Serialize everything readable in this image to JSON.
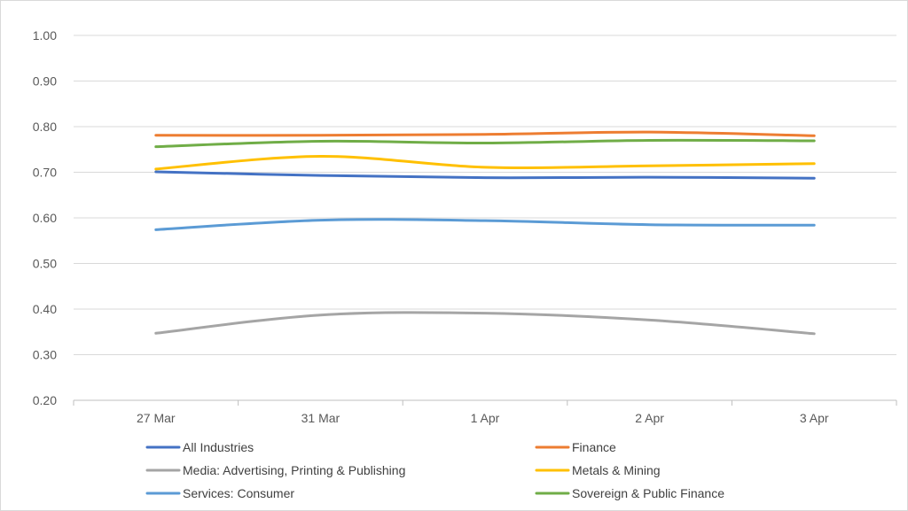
{
  "chart_data": {
    "type": "line",
    "title": "",
    "xlabel": "",
    "ylabel": "",
    "categories": [
      "27 Mar",
      "31 Mar",
      "1 Apr",
      "2 Apr",
      "3 Apr"
    ],
    "ylim": [
      0.2,
      1.0
    ],
    "y_ticks": [
      "0.20",
      "0.30",
      "0.40",
      "0.50",
      "0.60",
      "0.70",
      "0.80",
      "0.90",
      "1.00"
    ],
    "grid": true,
    "smooth": true,
    "legend_position": "bottom",
    "series": [
      {
        "name": "All Industries",
        "color": "#4472c4",
        "values": [
          0.701,
          0.693,
          0.688,
          0.689,
          0.687
        ]
      },
      {
        "name": "Finance",
        "color": "#ed7d31",
        "values": [
          0.781,
          0.781,
          0.783,
          0.788,
          0.78
        ]
      },
      {
        "name": "Media: Advertising, Printing & Publishing",
        "color": "#a5a5a5",
        "values": [
          0.347,
          0.387,
          0.391,
          0.376,
          0.346
        ]
      },
      {
        "name": "Metals & Mining",
        "color": "#ffc000",
        "values": [
          0.707,
          0.735,
          0.711,
          0.714,
          0.719
        ]
      },
      {
        "name": "Services: Consumer",
        "color": "#5b9bd5",
        "values": [
          0.574,
          0.595,
          0.594,
          0.585,
          0.584
        ]
      },
      {
        "name": "Sovereign & Public Finance",
        "color": "#70ad47",
        "values": [
          0.756,
          0.768,
          0.764,
          0.77,
          0.769
        ]
      }
    ]
  }
}
